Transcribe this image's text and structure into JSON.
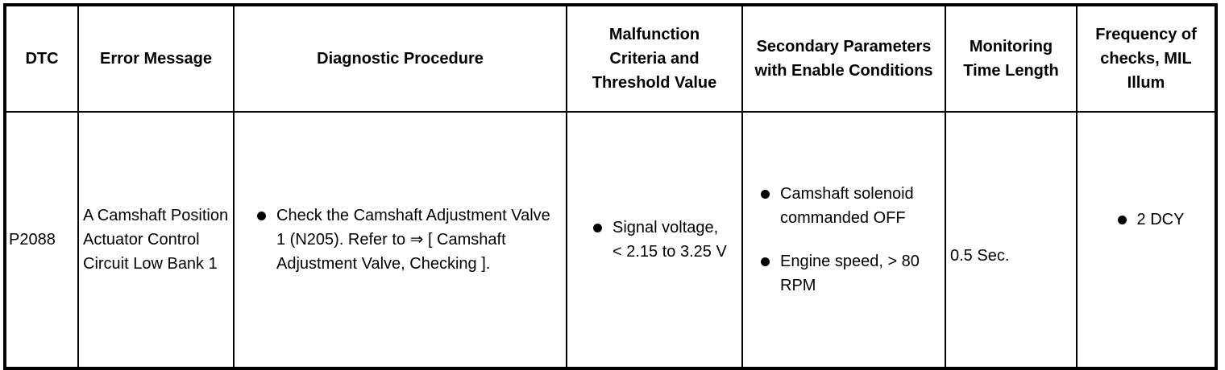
{
  "headers": [
    "DTC",
    "Error Message",
    "Diagnostic Procedure",
    "Malfunction Criteria and Threshold Value",
    "Secondary Parameters with Enable Conditions",
    "Monitoring Time Length",
    "Frequency of checks, MIL Illum"
  ],
  "row": {
    "dtc": "P2088",
    "error_message": "A Camshaft Position Actuator Control Circuit Low Bank 1",
    "diagnostic_procedure": [
      "Check the Camshaft Adjustment Valve 1 (N205). Refer to ⇒ [ Camshaft Adjustment Valve, Checking ]."
    ],
    "malfunction_criteria": [
      "Signal voltage, < 2.15 to 3.25 V"
    ],
    "secondary_parameters": [
      "Camshaft solenoid commanded OFF",
      "Engine speed, > 80 RPM"
    ],
    "monitoring_time": "0.5 Sec.",
    "frequency": [
      "2 DCY"
    ]
  }
}
